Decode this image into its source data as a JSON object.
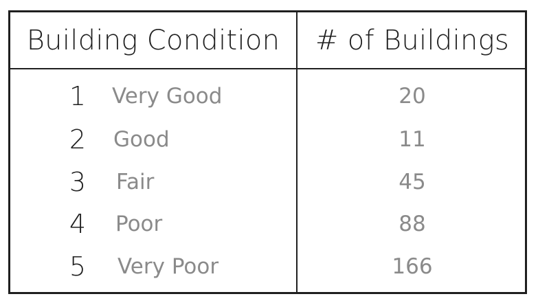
{
  "table": {
    "headers": {
      "condition": "Building Condition",
      "count": "# of Buildings"
    },
    "rows": [
      {
        "rank": "1",
        "condition": "Very Good",
        "count": "20"
      },
      {
        "rank": "2",
        "condition": "Good",
        "count": "11"
      },
      {
        "rank": "3",
        "condition": "Fair",
        "count": "45"
      },
      {
        "rank": "4",
        "condition": "Poor",
        "count": "88"
      },
      {
        "rank": "5",
        "condition": "Very Poor",
        "count": "166"
      }
    ]
  }
}
